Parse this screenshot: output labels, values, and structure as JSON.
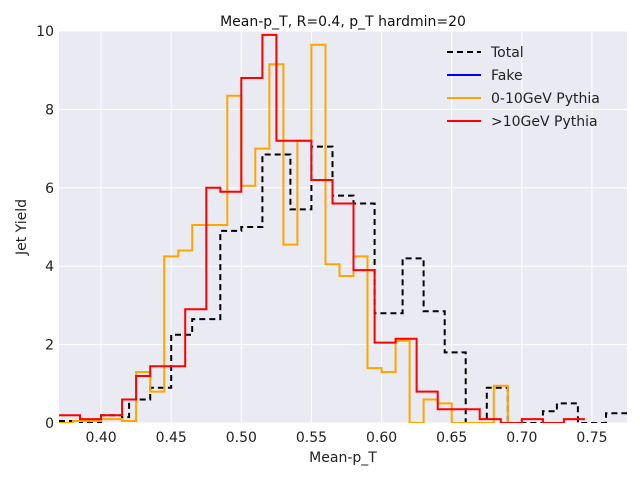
{
  "chart_data": {
    "type": "line",
    "title": "Mean-p_T, R=0.4, p_T hardmin=20",
    "xlabel": "Mean-p_T",
    "ylabel": "Jet Yield",
    "xlim": [
      0.37,
      0.775
    ],
    "ylim": [
      0,
      10
    ],
    "xticks": [
      0.4,
      0.45,
      0.5,
      0.55,
      0.6,
      0.65,
      0.7,
      0.75
    ],
    "xtick_labels": [
      "0.40",
      "0.45",
      "0.50",
      "0.55",
      "0.60",
      "0.65",
      "0.70",
      "0.75"
    ],
    "yticks": [
      0,
      2,
      4,
      6,
      8,
      10
    ],
    "ytick_labels": [
      "0",
      "2",
      "4",
      "6",
      "8",
      "10"
    ],
    "grid": true,
    "background": "#eaeaf2",
    "legend_position": "top-right",
    "series": [
      {
        "name": "Total",
        "color": "#000000",
        "dash": true,
        "style": "step",
        "edges": [
          0.37,
          0.385,
          0.4,
          0.415,
          0.42,
          0.435,
          0.45,
          0.465,
          0.475,
          0.485,
          0.5,
          0.515,
          0.535,
          0.55,
          0.565,
          0.58,
          0.595,
          0.615,
          0.63,
          0.645,
          0.66,
          0.675,
          0.69,
          0.7,
          0.715,
          0.725,
          0.74,
          0.76,
          0.775
        ],
        "values": [
          0.05,
          0.0,
          0.2,
          0.15,
          0.6,
          0.9,
          2.25,
          2.65,
          2.65,
          4.9,
          5.0,
          6.85,
          5.45,
          7.05,
          5.8,
          5.6,
          2.8,
          4.2,
          2.85,
          1.8,
          0.0,
          0.9,
          0.0,
          0.0,
          0.3,
          0.5,
          0.0,
          0.25
        ]
      },
      {
        "name": "Fake",
        "color": "#0000ff",
        "dash": false,
        "style": "step",
        "edges": [],
        "values": []
      },
      {
        "name": "0-10GeV Pythia",
        "color": "#ffa500",
        "dash": false,
        "style": "step",
        "edges": [
          0.37,
          0.38,
          0.39,
          0.4,
          0.415,
          0.425,
          0.435,
          0.445,
          0.455,
          0.465,
          0.48,
          0.49,
          0.5,
          0.51,
          0.52,
          0.53,
          0.54,
          0.55,
          0.56,
          0.57,
          0.58,
          0.59,
          0.6,
          0.61,
          0.62,
          0.63,
          0.64,
          0.65,
          0.66,
          0.67,
          0.68,
          0.69,
          0.7
        ],
        "values": [
          0.0,
          0.05,
          0.05,
          0.1,
          0.05,
          1.3,
          0.8,
          4.25,
          4.4,
          5.05,
          5.05,
          8.35,
          6.05,
          7.0,
          9.15,
          4.55,
          7.2,
          9.65,
          4.05,
          3.75,
          4.25,
          1.4,
          1.3,
          2.1,
          0.0,
          0.6,
          0.5,
          0.0,
          0.0,
          0.0,
          0.95,
          0.0
        ]
      },
      {
        "name": ">10GeV Pythia",
        "color": "#ff0000",
        "dash": false,
        "style": "step",
        "edges": [
          0.37,
          0.385,
          0.4,
          0.415,
          0.425,
          0.435,
          0.45,
          0.46,
          0.475,
          0.485,
          0.5,
          0.515,
          0.525,
          0.535,
          0.55,
          0.565,
          0.58,
          0.595,
          0.61,
          0.625,
          0.64,
          0.655,
          0.67,
          0.685,
          0.7,
          0.715,
          0.73,
          0.745
        ],
        "values": [
          0.2,
          0.1,
          0.2,
          0.6,
          1.2,
          1.45,
          1.45,
          2.9,
          6.0,
          5.9,
          8.8,
          9.9,
          7.2,
          7.2,
          6.2,
          5.6,
          3.9,
          2.05,
          2.15,
          0.8,
          0.35,
          0.35,
          0.1,
          0.0,
          0.1,
          0.0,
          0.1
        ]
      }
    ]
  }
}
